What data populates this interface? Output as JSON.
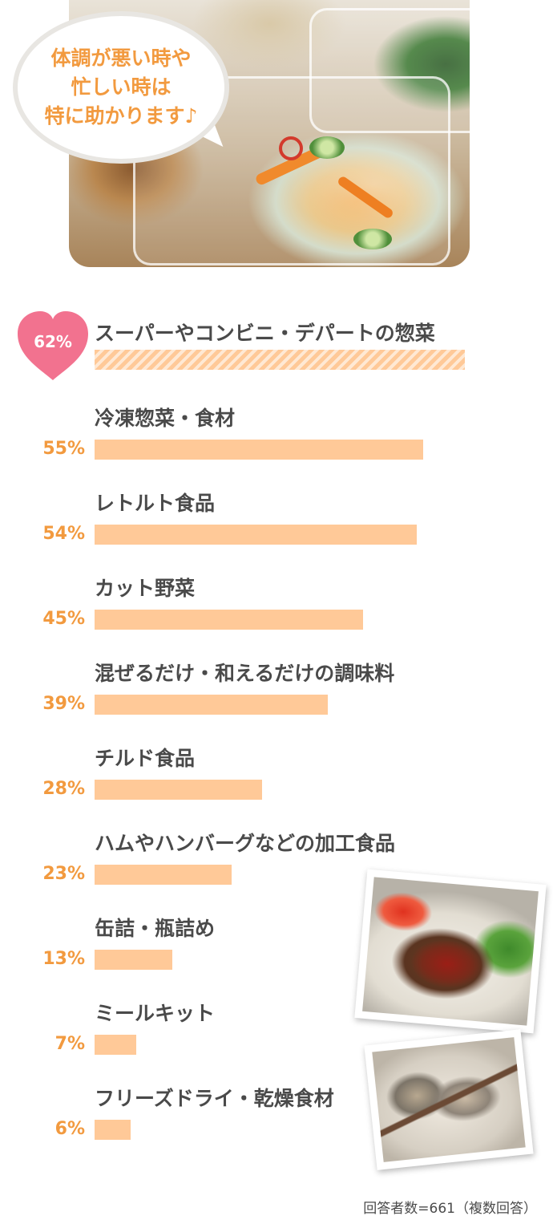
{
  "bubble": {
    "text": "体調が悪い時や\n忙しい時は\n特に助かります♪"
  },
  "chart_data": {
    "type": "bar",
    "orientation": "horizontal",
    "categories": [
      "スーパーやコンビニ・デパートの惣菜",
      "冷凍惣菜・食材",
      "レトルト食品",
      "カット野菜",
      "混ぜるだけ・和えるだけの調味料",
      "チルド食品",
      "ハムやハンバーグなどの加工食品",
      "缶詰・瓶詰め",
      "ミールキット",
      "フリーズドライ・乾燥食材"
    ],
    "values": [
      62,
      55,
      54,
      45,
      39,
      28,
      23,
      13,
      7,
      6
    ],
    "value_labels": [
      "62%",
      "55%",
      "54%",
      "45%",
      "39%",
      "28%",
      "23%",
      "13%",
      "7%",
      "6%"
    ],
    "unit": "%",
    "xlim": [
      0,
      62
    ],
    "grid": false,
    "colors": {
      "bar": "#ffc998",
      "bar_top_stripe": "#ffe9d4",
      "heart": "#f2728f",
      "percent_text": "#f29a3f",
      "label_text": "#4a4a4a"
    }
  },
  "footnote": "回答者数=661（複数回答）"
}
